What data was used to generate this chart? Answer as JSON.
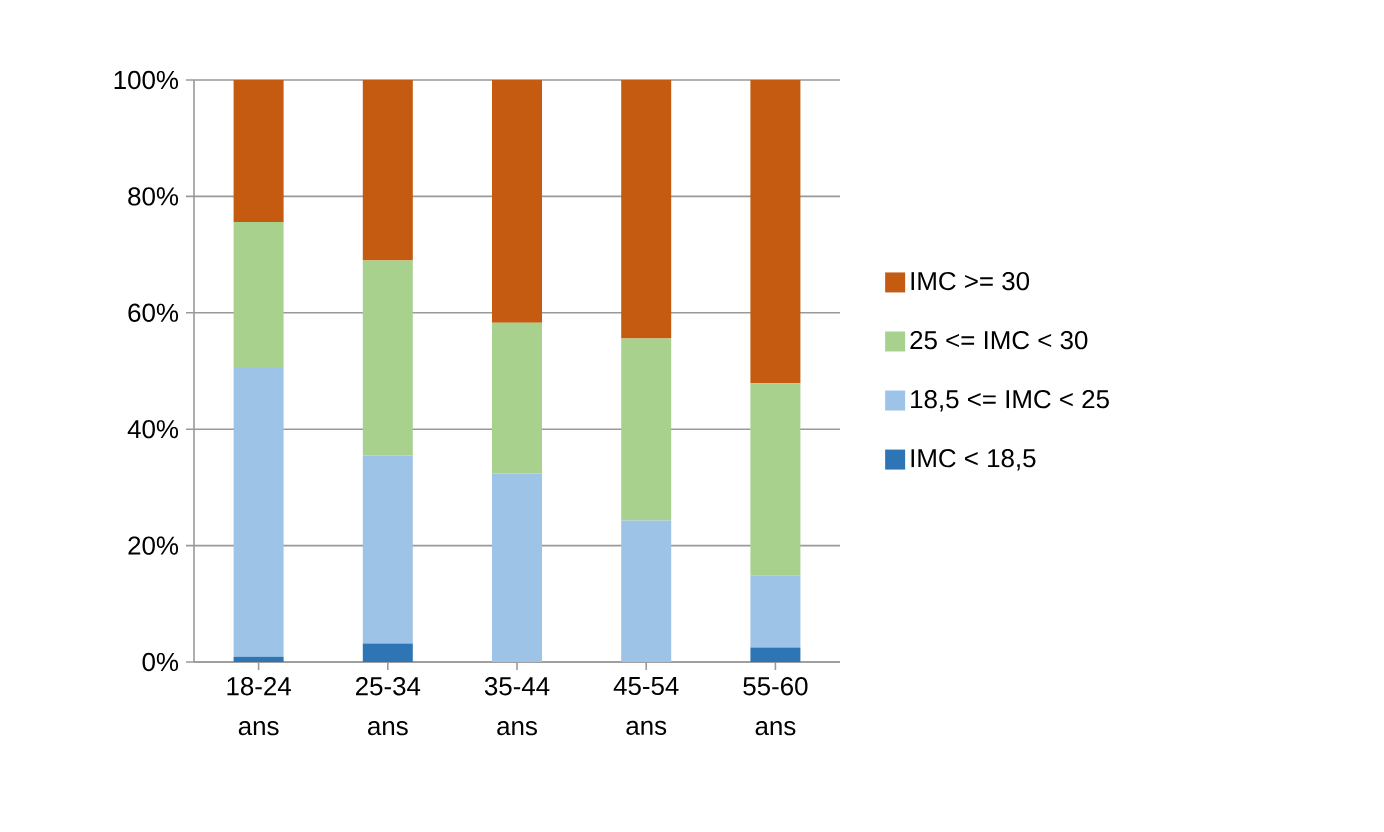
{
  "chart_data": {
    "type": "bar",
    "stacked": true,
    "categories": [
      "18-24 ans",
      "25-34 ans",
      "35-44 ans",
      "45-54 ans",
      "55-60 ans"
    ],
    "series": [
      {
        "name": "IMC < 18,5",
        "color": "#2e75b6",
        "values": [
          0.9,
          3.2,
          0,
          0,
          2.5
        ]
      },
      {
        "name": "18,5 <= IMC < 25",
        "color": "#9dc3e6",
        "values": [
          49.6,
          32.3,
          32.4,
          24.3,
          12.3
        ]
      },
      {
        "name": "25 <= IMC < 30",
        "color": "#a9d18e",
        "values": [
          25.1,
          33.5,
          25.9,
          31.3,
          33.1
        ]
      },
      {
        "name": "IMC >= 30",
        "color": "#c55a11",
        "values": [
          24.4,
          31.0,
          41.7,
          44.4,
          52.1
        ]
      }
    ],
    "ylim": [
      0,
      100
    ],
    "yticks": [
      {
        "value": 0,
        "label": "0%"
      },
      {
        "value": 20,
        "label": "20%"
      },
      {
        "value": 40,
        "label": "40%"
      },
      {
        "value": 60,
        "label": "60%"
      },
      {
        "value": 80,
        "label": "80%"
      },
      {
        "value": 100,
        "label": "100%"
      }
    ],
    "grid": "y",
    "legend": "right"
  }
}
